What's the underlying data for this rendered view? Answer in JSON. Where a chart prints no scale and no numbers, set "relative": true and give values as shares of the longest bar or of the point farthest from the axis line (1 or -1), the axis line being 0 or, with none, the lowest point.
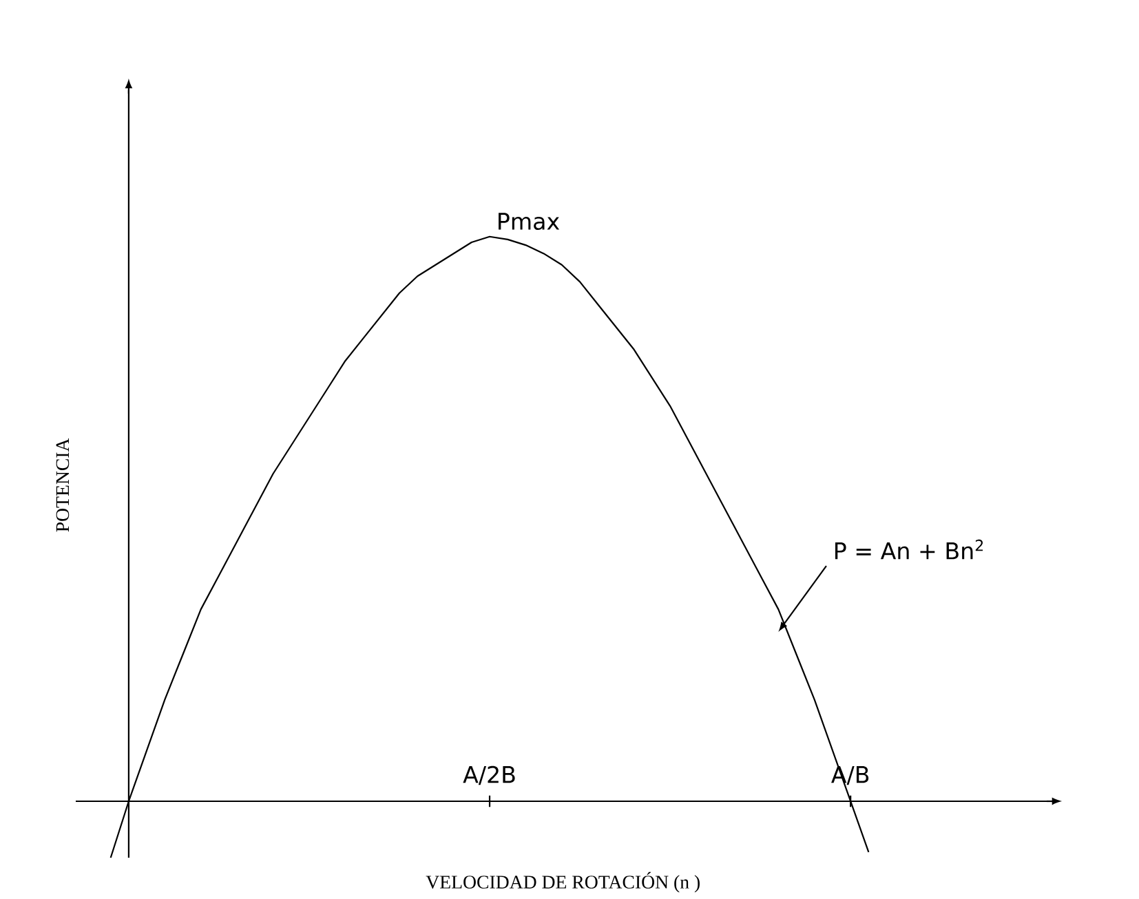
{
  "chart_data": {
    "type": "line",
    "relative": true,
    "xlabel": "VELOCIDAD DE ROTACIÓN (n )",
    "ylabel": "POTENCIA",
    "categories": [
      null,
      null,
      null,
      null,
      null,
      null,
      null,
      null,
      null,
      null,
      null,
      null,
      null,
      null,
      null,
      null,
      null,
      null,
      null,
      null,
      null,
      "A/2B",
      null,
      null,
      null,
      null,
      null,
      null,
      null,
      null,
      null,
      null,
      null,
      null,
      null,
      null,
      null,
      null,
      null,
      null,
      null,
      "A/B",
      null
    ],
    "values": [
      -0.1,
      0,
      0.09,
      0.18,
      0.26,
      0.34,
      0.4,
      0.46,
      0.52,
      0.58,
      0.63,
      0.68,
      0.73,
      0.78,
      0.82,
      0.86,
      0.9,
      0.93,
      0.95,
      0.97,
      0.99,
      1,
      0.995,
      0.985,
      0.97,
      0.95,
      0.92,
      0.88,
      0.84,
      0.8,
      0.75,
      0.7,
      0.64,
      0.58,
      0.52,
      0.46,
      0.4,
      0.34,
      0.26,
      0.18,
      0.09,
      0,
      -0.09
    ],
    "color": "#000000",
    "annotations": [
      {
        "text": "Pmax",
        "x": "A/2B",
        "y": 1
      },
      "P = An + Bn$^{2}$"
    ],
    "marker": "none",
    "line_style": "solid"
  }
}
